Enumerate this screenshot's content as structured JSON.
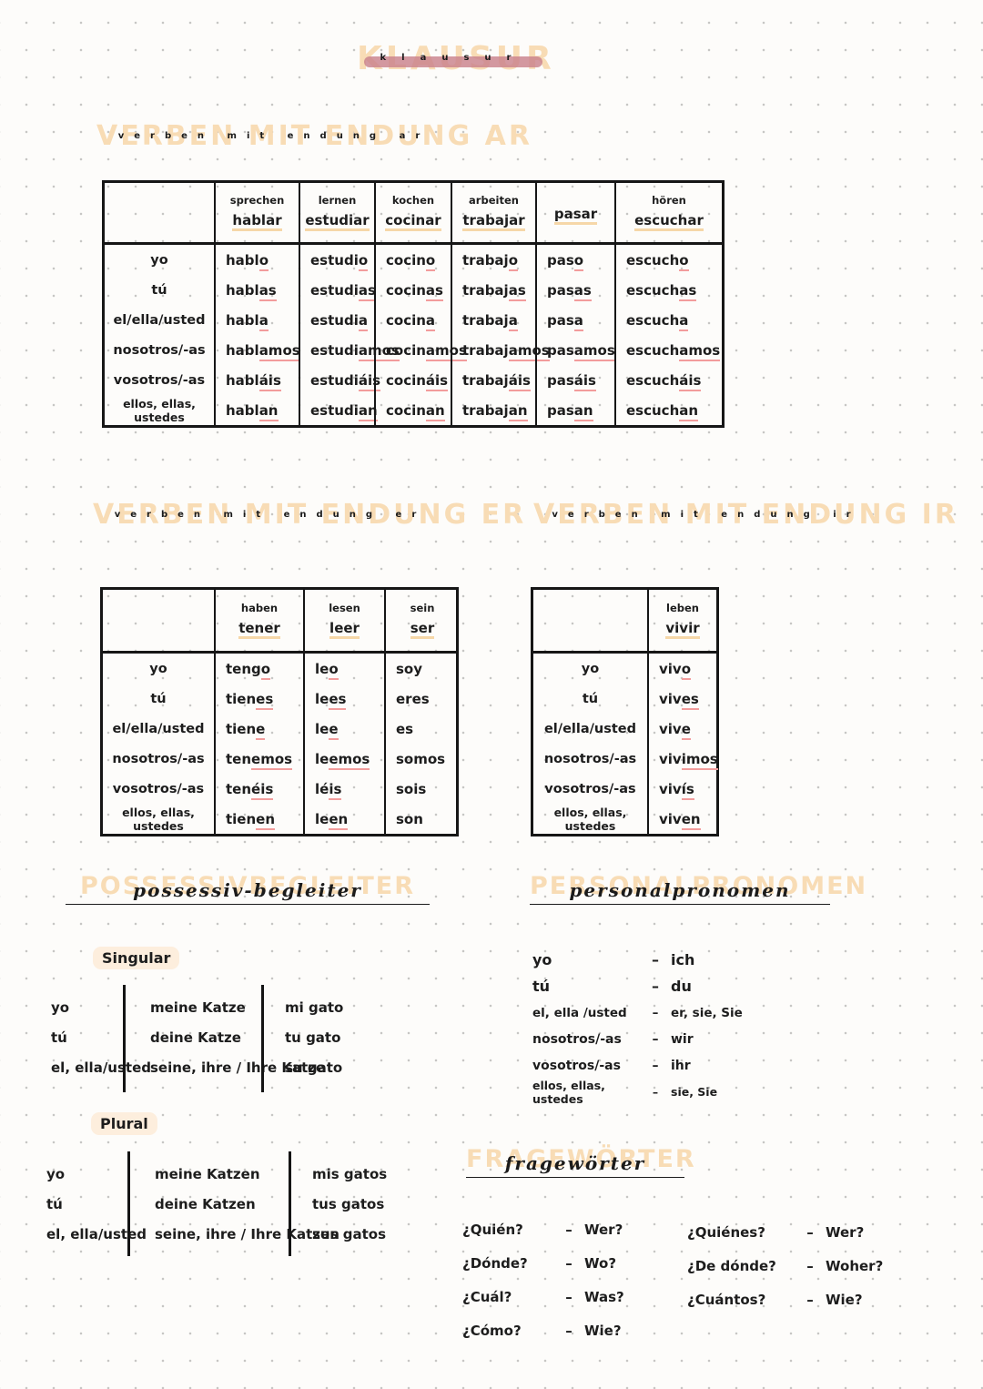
{
  "title": {
    "bubble": "KLAUSUR",
    "script": "klausur"
  },
  "headings": {
    "ar": {
      "bubble": "VERBEN MIT ENDUNG AR",
      "script": "verben mit endung ar"
    },
    "er": {
      "bubble": "VERBEN MIT ENDUNG ER",
      "script": "verben mit endung er"
    },
    "ir": {
      "bubble": "VERBEN MIT ENDUNG IR",
      "script": "verben mit endung ir"
    },
    "possessive": {
      "bubble": "POSSESSIVBEGLEITER",
      "script": "possessiv-begleiter"
    },
    "pronouns": {
      "bubble": "PERSONALPRONOMEN",
      "script": "personalpronomen"
    },
    "questions": {
      "bubble": "FRAGEWÖRTER",
      "script": "fragewörter"
    }
  },
  "tables": {
    "ar": {
      "labels": [
        "yo",
        "tú",
        "el/ella/usted",
        "nosotros/-as",
        "vosotros/-as",
        "ellos, ellas, ustedes"
      ],
      "columns": [
        {
          "german": "sprechen",
          "infinitive": "hablar",
          "forms": [
            "habl|o",
            "habl|as",
            "habl|a",
            "habl|amos",
            "habl|áis",
            "habl|an"
          ]
        },
        {
          "german": "lernen",
          "infinitive": "estudiar",
          "forms": [
            "estudi|o",
            "estudi|as",
            "estudi|a",
            "estudi|amos",
            "estudi|áis",
            "estudi|an"
          ]
        },
        {
          "german": "kochen",
          "infinitive": "cocinar",
          "forms": [
            "cocin|o",
            "cocin|as",
            "cocin|a",
            "cocin|amos",
            "cocin|áis",
            "cocin|an"
          ]
        },
        {
          "german": "arbeiten",
          "infinitive": "trabajar",
          "forms": [
            "trabaj|o",
            "trabaj|as",
            "trabaj|a",
            "trabaj|amos",
            "trabaj|áis",
            "trabaj|an"
          ]
        },
        {
          "german": "",
          "infinitive": "pasar",
          "forms": [
            "pas|o",
            "pas|as",
            "pas|a",
            "pas|amos",
            "pas|áis",
            "pas|an"
          ]
        },
        {
          "german": "hören",
          "infinitive": "escuchar",
          "forms": [
            "escuch|o",
            "escuch|as",
            "escuch|a",
            "escuch|amos",
            "escuch|áis",
            "escuch|an"
          ]
        }
      ]
    },
    "er": {
      "labels": [
        "yo",
        "tú",
        "el/ella/usted",
        "nosotros/-as",
        "vosotros/-as",
        "ellos, ellas, ustedes"
      ],
      "columns": [
        {
          "german": "haben",
          "infinitive": "tener",
          "forms": [
            "teng|o",
            "tien|es",
            "tien|e",
            "ten|emos",
            "ten|éis",
            "tien|en"
          ]
        },
        {
          "german": "lesen",
          "infinitive": "leer",
          "forms": [
            "le|o",
            "le|es",
            "le|e",
            "le|emos",
            "lé|is",
            "le|en"
          ]
        },
        {
          "german": "sein",
          "infinitive": "ser",
          "forms": [
            "soy",
            "eres",
            "es",
            "somos",
            "sois",
            "son"
          ]
        }
      ]
    },
    "ir": {
      "labels": [
        "yo",
        "tú",
        "el/ella/usted",
        "nosotros/-as",
        "vosotros/-as",
        "ellos, ellas, ustedes"
      ],
      "columns": [
        {
          "german": "leben",
          "infinitive": "vivir",
          "forms": [
            "viv|o",
            "viv|es",
            "viv|e",
            "viv|imos",
            "viv|ís",
            "viv|en"
          ]
        }
      ]
    }
  },
  "possessive": {
    "singular_label": "Singular",
    "plural_label": "Plural",
    "singular_rows": [
      [
        "yo",
        "meine Katze",
        "mi gato"
      ],
      [
        "tú",
        "deine Katze",
        "tu gato"
      ],
      [
        "el, ella/usted",
        "seine, ihre / Ihre Katze",
        "su gato"
      ]
    ],
    "plural_rows": [
      [
        "yo",
        "meine Katzen",
        "mis gatos"
      ],
      [
        "tú",
        "deine Katzen",
        "tus gatos"
      ],
      [
        "el, ella/usted",
        "seine, ihre / Ihre Katzen",
        "sus gatos"
      ]
    ]
  },
  "pronoun_rows": [
    [
      "yo",
      "ich"
    ],
    [
      "tú",
      "du"
    ],
    [
      "el, ella /usted",
      "er, sie, Sie"
    ],
    [
      "nosotros/-as",
      "wir"
    ],
    [
      "vosotros/-as",
      "ihr"
    ],
    [
      "ellos, ellas, ustedes",
      "sie, Sie"
    ]
  ],
  "question_words": {
    "left": [
      [
        "¿Quién?",
        "Wer?"
      ],
      [
        "¿Dónde?",
        "Wo?"
      ],
      [
        "¿Cuál?",
        "Was?"
      ],
      [
        "¿Cómo?",
        "Wie?"
      ]
    ],
    "right": [
      [
        "¿Quiénes?",
        "Wer?"
      ],
      [
        "¿De dónde?",
        "Woher?"
      ],
      [
        "¿Cuántos?",
        "Wie?"
      ]
    ]
  },
  "separator": "–",
  "colors": {
    "peach_bubble": "#f8dcb5",
    "peach_underline": "#f6d7a8",
    "peach_pill": "#fdeedd",
    "rose_strike": "#c9818c",
    "pink_ending_underline": "#f29c9c",
    "ink": "#1d1d1d",
    "table_border": "#161616",
    "dot_grid": "#c7c6c4",
    "page_background": "#fdfcfa"
  }
}
